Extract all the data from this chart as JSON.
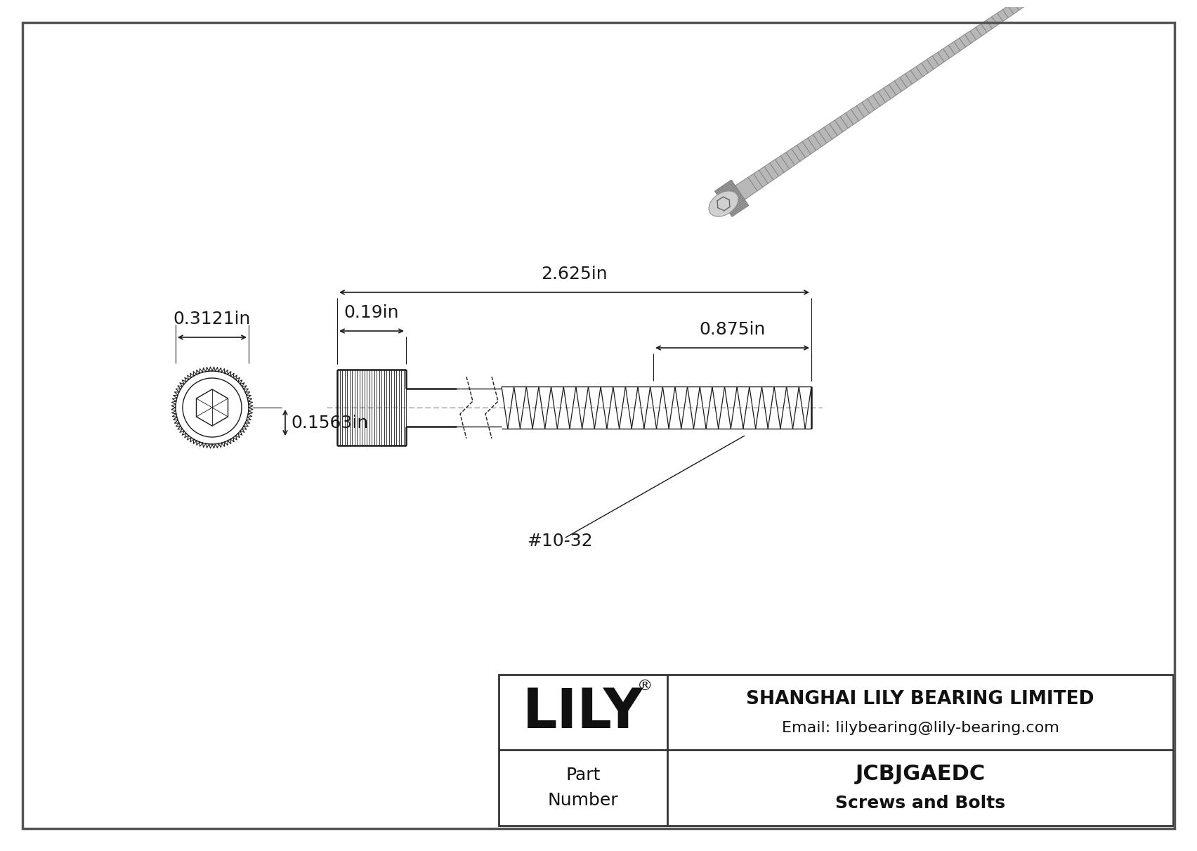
{
  "bg_color": "#ffffff",
  "line_color": "#1a1a1a",
  "dim_color": "#1a1a1a",
  "title": "JCBJGAEDC",
  "subtitle": "Screws and Bolts",
  "company": "SHANGHAI LILY BEARING LIMITED",
  "email": "Email: lilybearing@lily-bearing.com",
  "part_label": "Part\nNumber",
  "lily_text": "LILY",
  "dim_head_width": "0.3121in",
  "dim_head_height": "0.1563in",
  "dim_head_length": "0.19in",
  "dim_total_length": "2.625in",
  "dim_thread_length": "0.875in",
  "thread_label": "#10-32",
  "outer_border_color": "#444444",
  "gray_light": "#d8d8d8",
  "gray_mid": "#b0b0b0",
  "gray_dark": "#888888",
  "gray_shank": "#c8c8c8"
}
